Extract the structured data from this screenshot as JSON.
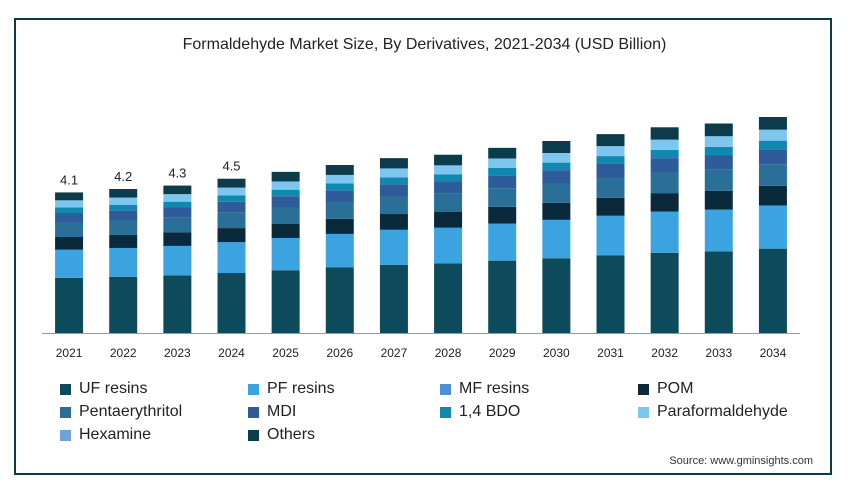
{
  "chart_data": {
    "type": "bar",
    "stacked": true,
    "title": "Formaldehyde Market Size, By Derivatives, 2021-2034 (USD Billion)",
    "categories": [
      "2021",
      "2022",
      "2023",
      "2024",
      "2025",
      "2026",
      "2027",
      "2028",
      "2029",
      "2030",
      "2031",
      "2032",
      "2033",
      "2034"
    ],
    "totals_labels": [
      "4.1",
      "4.2",
      "4.3",
      "4.5",
      "",
      "",
      "",
      "",
      "",
      "",
      "",
      "",
      "",
      ""
    ],
    "totals": [
      4.1,
      4.2,
      4.3,
      4.5,
      4.7,
      4.9,
      5.1,
      5.2,
      5.4,
      5.6,
      5.8,
      6.0,
      6.1,
      6.3
    ],
    "series": [
      {
        "name": "UF resins",
        "color": "#0d4a5c",
        "values": [
          1.61,
          1.64,
          1.68,
          1.75,
          1.83,
          1.91,
          1.99,
          2.03,
          2.11,
          2.18,
          2.26,
          2.34,
          2.38,
          2.46
        ]
      },
      {
        "name": "PF resins",
        "color": "#3aa3e0",
        "values": [
          0.82,
          0.84,
          0.86,
          0.9,
          0.94,
          0.98,
          1.02,
          1.04,
          1.08,
          1.12,
          1.16,
          1.2,
          1.22,
          1.26
        ]
      },
      {
        "name": "MF resins",
        "color": "#4f8fd1",
        "values": [
          0.0,
          0.0,
          0.0,
          0.0,
          0.0,
          0.0,
          0.0,
          0.0,
          0.0,
          0.0,
          0.0,
          0.0,
          0.0,
          0.0
        ]
      },
      {
        "name": "POM",
        "color": "#0a2a3c",
        "values": [
          0.37,
          0.38,
          0.39,
          0.41,
          0.42,
          0.44,
          0.46,
          0.47,
          0.49,
          0.5,
          0.52,
          0.54,
          0.55,
          0.57
        ]
      },
      {
        "name": "Pentaerythritol",
        "color": "#2a6f97",
        "values": [
          0.41,
          0.42,
          0.43,
          0.45,
          0.47,
          0.49,
          0.51,
          0.52,
          0.54,
          0.56,
          0.58,
          0.6,
          0.61,
          0.63
        ]
      },
      {
        "name": "MDI",
        "color": "#2e5c9a",
        "values": [
          0.29,
          0.29,
          0.3,
          0.32,
          0.33,
          0.34,
          0.36,
          0.36,
          0.38,
          0.39,
          0.41,
          0.42,
          0.43,
          0.44
        ]
      },
      {
        "name": "1,4 BDO",
        "color": "#1089b0",
        "values": [
          0.16,
          0.17,
          0.17,
          0.18,
          0.19,
          0.2,
          0.2,
          0.21,
          0.22,
          0.22,
          0.23,
          0.24,
          0.24,
          0.25
        ]
      },
      {
        "name": "Paraformaldehyde",
        "color": "#7cc6ef",
        "values": [
          0.21,
          0.21,
          0.22,
          0.23,
          0.24,
          0.25,
          0.26,
          0.26,
          0.27,
          0.28,
          0.29,
          0.3,
          0.31,
          0.32
        ]
      },
      {
        "name": "Hexamine",
        "color": "#6fa3d8",
        "values": [
          0.0,
          0.0,
          0.0,
          0.0,
          0.0,
          0.0,
          0.0,
          0.0,
          0.0,
          0.0,
          0.0,
          0.0,
          0.0,
          0.0
        ]
      },
      {
        "name": "Others",
        "color": "#0c3b4b",
        "values": [
          0.23,
          0.25,
          0.25,
          0.26,
          0.28,
          0.29,
          0.3,
          0.31,
          0.31,
          0.35,
          0.35,
          0.36,
          0.37,
          0.37
        ]
      }
    ],
    "ylim": [
      0,
      7
    ],
    "grid": false,
    "legend_position": "bottom"
  },
  "source": "Source: www.gminsights.com"
}
